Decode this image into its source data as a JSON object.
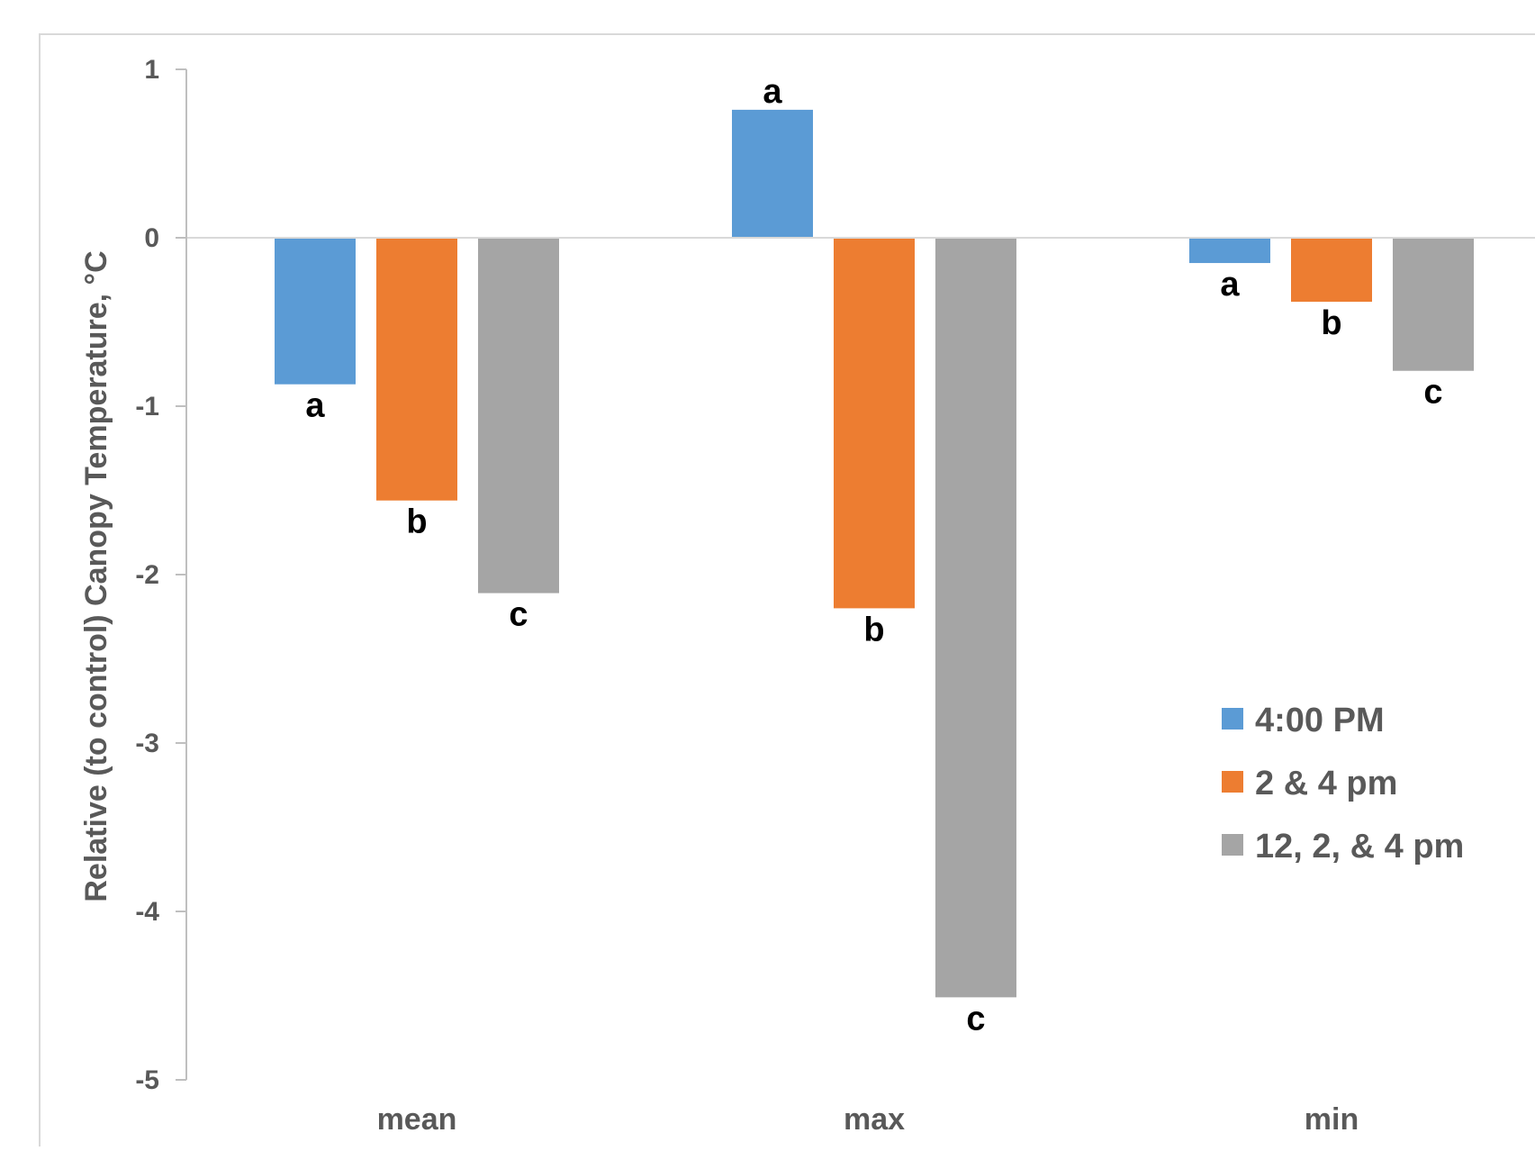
{
  "chart_data": {
    "type": "bar",
    "title": "",
    "xlabel": "",
    "ylabel": "Relative (to control) Canopy Temperature, °C",
    "ylim": [
      -5,
      1
    ],
    "yticks": [
      1,
      0,
      -1,
      -2,
      -3,
      -4,
      -5
    ],
    "grid": false,
    "legend_position": "right",
    "categories": [
      "mean",
      "max",
      "min"
    ],
    "series": [
      {
        "name": "4:00 PM",
        "color": "#5B9BD5",
        "values": [
          -0.87,
          0.76,
          -0.15
        ],
        "labels": [
          "a",
          "a",
          "a"
        ]
      },
      {
        "name": "2 & 4 pm",
        "color": "#ED7D31",
        "values": [
          -1.56,
          -2.2,
          -0.38
        ],
        "labels": [
          "b",
          "b",
          "b"
        ]
      },
      {
        "name": "12, 2, & 4 pm",
        "color": "#A5A5A5",
        "values": [
          -2.11,
          -4.51,
          -0.79
        ],
        "labels": [
          "c",
          "c",
          "c"
        ]
      }
    ]
  }
}
